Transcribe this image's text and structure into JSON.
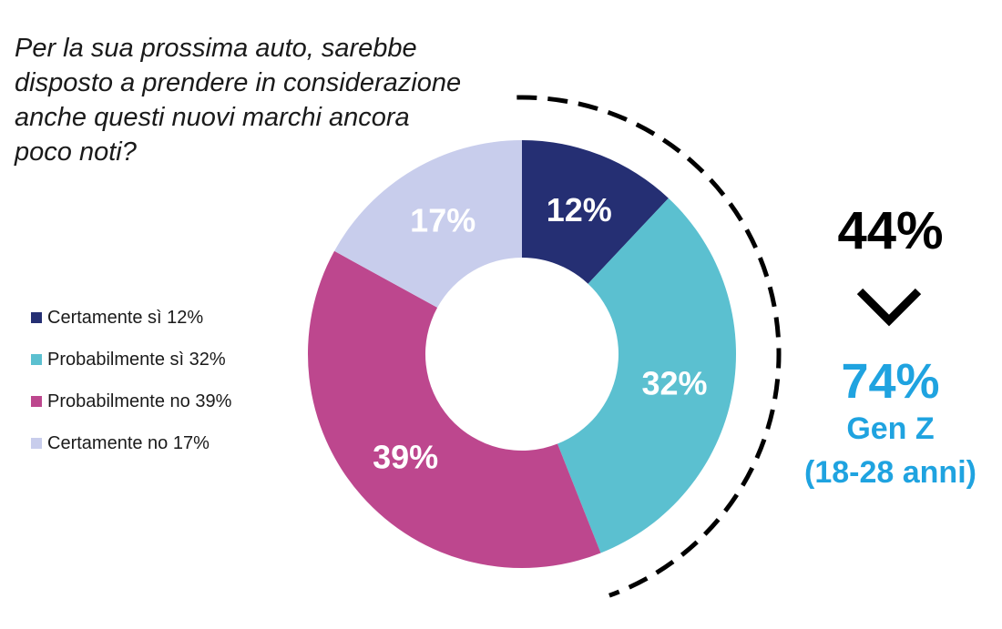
{
  "chart_data": {
    "type": "pie",
    "title": "Per la sua prossima auto, sarebbe\ndisposto a prendere in considerazione\nanche questi nuovi marchi ancora\npoco noti?",
    "donut": true,
    "categories": [
      "Certamente sì",
      "Probabilmente sì",
      "Probabilmente no",
      "Certamente no"
    ],
    "values": [
      12,
      32,
      39,
      17
    ],
    "slice_labels": [
      "12%",
      "32%",
      "39%",
      "17%"
    ],
    "colors": [
      "#252f73",
      "#5bc0d0",
      "#bd478e",
      "#c8cdec"
    ],
    "legend": {
      "position": "left",
      "entries": [
        "Certamente sì 12%",
        "Probabilmente sì 32%",
        "Probabilmente no 39%",
        "Certamente no 17%"
      ]
    },
    "annotation": {
      "total": "44%",
      "genz_value": "74%",
      "genz_label": "Gen Z",
      "genz_age": "(18-28 anni)",
      "genz_color": "#1fa3e0"
    }
  }
}
